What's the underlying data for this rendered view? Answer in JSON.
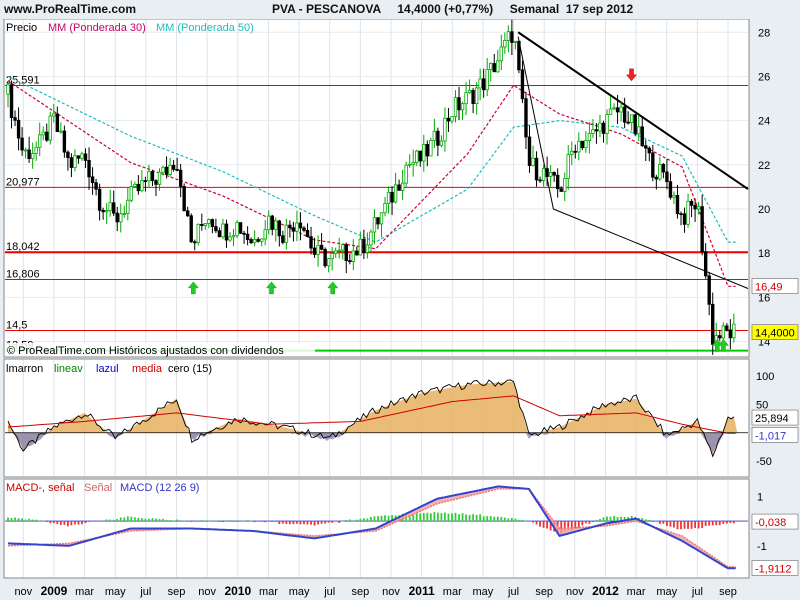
{
  "header": {
    "site": "www.ProRealTime.com",
    "ticker": "PVA - PESCANOVA",
    "last_price": "14,4000",
    "change": "(+0,77%)",
    "period": "Semanal",
    "date": "17 sep 2012"
  },
  "price_panel": {
    "legend": [
      {
        "text": "Precio",
        "color": "#000000"
      },
      {
        "text": "MM (Ponderada 30)",
        "color": "#cc0066"
      },
      {
        "text": "MM (Ponderada 50)",
        "color": "#22bbbb"
      }
    ],
    "yticks": [
      "14",
      "16",
      "18",
      "20",
      "22",
      "24",
      "26",
      "28"
    ],
    "levels": [
      "25,591",
      "20,977",
      "18,042",
      "16,806",
      "14,5",
      "13,59"
    ],
    "level_values": [
      25.591,
      20.977,
      18.042,
      16.806,
      14.5,
      13.59
    ],
    "last_price_label": "14,4000",
    "trendline_label": "16,49",
    "copyright": "© ProRealTime.com  Históricos ajustados con dividendos",
    "ylim": [
      13.3,
      28.6
    ]
  },
  "oscillator_panel": {
    "legend": [
      {
        "text": "lmarron",
        "color": "#000000"
      },
      {
        "text": "lineav",
        "color": "#008800"
      },
      {
        "text": "lazul",
        "color": "#0000cc"
      },
      {
        "text": "media",
        "color": "#cc0000"
      },
      {
        "text": "cero (15)",
        "color": "#000000"
      }
    ],
    "yticks": [
      "100",
      "50",
      "-50"
    ],
    "labels": [
      "25,894",
      "-1,017"
    ],
    "ylim": [
      -78,
      130
    ]
  },
  "macd_panel": {
    "legend": [
      {
        "text": "MACD-, señal",
        "color": "#cc0000"
      },
      {
        "text": "Señal",
        "color": "#cc6666"
      },
      {
        "text": "MACD (12 26 9)",
        "color": "#3333cc"
      }
    ],
    "yticks": [
      "1",
      "-1"
    ],
    "labels": [
      "-0,038",
      "-1,9112"
    ],
    "ylim": [
      -2.3,
      1.7
    ]
  },
  "x_axis": {
    "labels": [
      "nov",
      "2009",
      "mar",
      "may",
      "jul",
      "sep",
      "nov",
      "2010",
      "mar",
      "may",
      "jul",
      "sep",
      "nov",
      "2011",
      "mar",
      "may",
      "jul",
      "sep",
      "nov",
      "2012",
      "mar",
      "may",
      "jul",
      "sep"
    ],
    "bold": [
      "2009",
      "2010",
      "2011",
      "2012"
    ]
  },
  "colors": {
    "background": "#ffffff",
    "frame": "#e9eef2",
    "up_candle": "#00aa00",
    "down_candle": "#000000",
    "level_line": "#ee0000",
    "support_line": "#00cc00",
    "wma30": "#cc0033",
    "wma50": "#22bbbb",
    "osc_fill": "#e8b060",
    "osc_green": "#33aa55",
    "osc_blue": "#8888bb",
    "macd": "#3344cc",
    "signal": "#ee7777",
    "hist_pos": "#33cc33",
    "hist_neg": "#ee3333",
    "arrow_up": "#22cc22",
    "arrow_down": "#ee2222"
  },
  "chart_data": [
    {
      "type": "candlestick",
      "title": "PVA - PESCANOVA",
      "period": "Semanal",
      "x_start": "2008-10",
      "x_end": "2012-09",
      "ylim": [
        13.3,
        28.6
      ],
      "close_anchors": [
        [
          "2008-10",
          25.2
        ],
        [
          "2008-11",
          22.5
        ],
        [
          "2008-12",
          22.8
        ],
        [
          "2009-01",
          24.0
        ],
        [
          "2009-02",
          22.0
        ],
        [
          "2009-03",
          22.4
        ],
        [
          "2009-04",
          20.4
        ],
        [
          "2009-05",
          19.5
        ],
        [
          "2009-06",
          20.5
        ],
        [
          "2009-07",
          21.2
        ],
        [
          "2009-08",
          21.5
        ],
        [
          "2009-09",
          22.3
        ],
        [
          "2009-10",
          18.3
        ],
        [
          "2009-11",
          19.8
        ],
        [
          "2009-12",
          19.0
        ],
        [
          "2010-01",
          19.3
        ],
        [
          "2010-02",
          18.5
        ],
        [
          "2010-03",
          19.6
        ],
        [
          "2010-04",
          18.9
        ],
        [
          "2010-05",
          19.7
        ],
        [
          "2010-06",
          18.0
        ],
        [
          "2010-07",
          17.7
        ],
        [
          "2010-08",
          18.0
        ],
        [
          "2010-09",
          18.2
        ],
        [
          "2010-10",
          19.3
        ],
        [
          "2010-11",
          20.5
        ],
        [
          "2010-12",
          22.0
        ],
        [
          "2011-01",
          22.3
        ],
        [
          "2011-02",
          23.2
        ],
        [
          "2011-03",
          24.5
        ],
        [
          "2011-04",
          25.0
        ],
        [
          "2011-05",
          25.7
        ],
        [
          "2011-06",
          26.8
        ],
        [
          "2011-07",
          28.1
        ],
        [
          "2011-08",
          22.0
        ],
        [
          "2011-09",
          21.6
        ],
        [
          "2011-10",
          20.8
        ],
        [
          "2011-11",
          23.0
        ],
        [
          "2011-12",
          23.2
        ],
        [
          "2012-01",
          24.0
        ],
        [
          "2012-02",
          24.5
        ],
        [
          "2012-03",
          23.5
        ],
        [
          "2012-04",
          22.0
        ],
        [
          "2012-05",
          21.3
        ],
        [
          "2012-06",
          19.6
        ],
        [
          "2012-07",
          20.3
        ],
        [
          "2012-08",
          14.2
        ],
        [
          "2012-09",
          14.4
        ]
      ],
      "series": [
        {
          "name": "MM (Ponderada 30)",
          "values_anchor": [
            [
              "2008-10",
              25.8
            ],
            [
              "2009-06",
              22.1
            ],
            [
              "2009-12",
              20.6
            ],
            [
              "2010-06",
              18.6
            ],
            [
              "2010-10",
              18.2
            ],
            [
              "2011-04",
              22.5
            ],
            [
              "2011-07",
              25.6
            ],
            [
              "2011-10",
              24.3
            ],
            [
              "2012-02",
              23.4
            ],
            [
              "2012-06",
              21.9
            ],
            [
              "2012-09",
              16.5
            ]
          ]
        },
        {
          "name": "MM (Ponderada 50)",
          "values_anchor": [
            [
              "2008-10",
              26.0
            ],
            [
              "2009-06",
              23.3
            ],
            [
              "2009-12",
              21.7
            ],
            [
              "2010-06",
              19.7
            ],
            [
              "2010-10",
              18.5
            ],
            [
              "2011-04",
              20.9
            ],
            [
              "2011-07",
              23.7
            ],
            [
              "2011-10",
              24.0
            ],
            [
              "2012-02",
              23.7
            ],
            [
              "2012-06",
              22.4
            ],
            [
              "2012-09",
              18.5
            ]
          ]
        }
      ]
    },
    {
      "type": "area",
      "title": "lmarron lineav lazul media cero (15)",
      "ylim": [
        -78,
        130
      ],
      "series": [
        {
          "name": "lmarron",
          "values_anchor": [
            [
              "2008-10",
              20
            ],
            [
              "2008-11",
              -30
            ],
            [
              "2009-01",
              10
            ],
            [
              "2009-03",
              35
            ],
            [
              "2009-05",
              -10
            ],
            [
              "2009-09",
              60
            ],
            [
              "2009-10",
              -10
            ],
            [
              "2010-01",
              25
            ],
            [
              "2010-04",
              10
            ],
            [
              "2010-07",
              -10
            ],
            [
              "2010-10",
              40
            ],
            [
              "2011-01",
              70
            ],
            [
              "2011-04",
              85
            ],
            [
              "2011-07",
              90
            ],
            [
              "2011-08",
              -5
            ],
            [
              "2011-10",
              10
            ],
            [
              "2012-01",
              50
            ],
            [
              "2012-03",
              60
            ],
            [
              "2012-05",
              -5
            ],
            [
              "2012-07",
              20
            ],
            [
              "2012-08",
              -40
            ],
            [
              "2012-09",
              26
            ]
          ]
        },
        {
          "name": "media",
          "values_anchor": [
            [
              "2008-10",
              10
            ],
            [
              "2009-03",
              20
            ],
            [
              "2009-09",
              35
            ],
            [
              "2010-03",
              15
            ],
            [
              "2010-09",
              20
            ],
            [
              "2011-03",
              55
            ],
            [
              "2011-07",
              65
            ],
            [
              "2011-10",
              30
            ],
            [
              "2012-03",
              35
            ],
            [
              "2012-06",
              15
            ],
            [
              "2012-09",
              -1
            ]
          ]
        }
      ]
    },
    {
      "type": "line",
      "title": "MACD (12 26 9)",
      "ylim": [
        -2.3,
        1.7
      ],
      "series": [
        {
          "name": "MACD",
          "values_anchor": [
            [
              "2008-10",
              -0.9
            ],
            [
              "2009-02",
              -1.0
            ],
            [
              "2009-06",
              -0.3
            ],
            [
              "2009-10",
              -0.3
            ],
            [
              "2010-02",
              -0.4
            ],
            [
              "2010-06",
              -0.7
            ],
            [
              "2010-10",
              -0.3
            ],
            [
              "2011-02",
              0.9
            ],
            [
              "2011-06",
              1.4
            ],
            [
              "2011-08",
              1.3
            ],
            [
              "2011-10",
              -0.6
            ],
            [
              "2012-01",
              -0.1
            ],
            [
              "2012-03",
              0.1
            ],
            [
              "2012-06",
              -0.8
            ],
            [
              "2012-09",
              -1.91
            ]
          ]
        },
        {
          "name": "Señal",
          "values_anchor": [
            [
              "2008-10",
              -1.0
            ],
            [
              "2009-02",
              -0.9
            ],
            [
              "2009-06",
              -0.4
            ],
            [
              "2009-10",
              -0.3
            ],
            [
              "2010-02",
              -0.4
            ],
            [
              "2010-06",
              -0.6
            ],
            [
              "2010-10",
              -0.4
            ],
            [
              "2011-02",
              0.7
            ],
            [
              "2011-06",
              1.3
            ],
            [
              "2011-08",
              1.3
            ],
            [
              "2011-10",
              -0.3
            ],
            [
              "2012-01",
              -0.2
            ],
            [
              "2012-03",
              0.0
            ],
            [
              "2012-06",
              -0.6
            ],
            [
              "2012-09",
              -1.85
            ]
          ]
        }
      ]
    }
  ]
}
